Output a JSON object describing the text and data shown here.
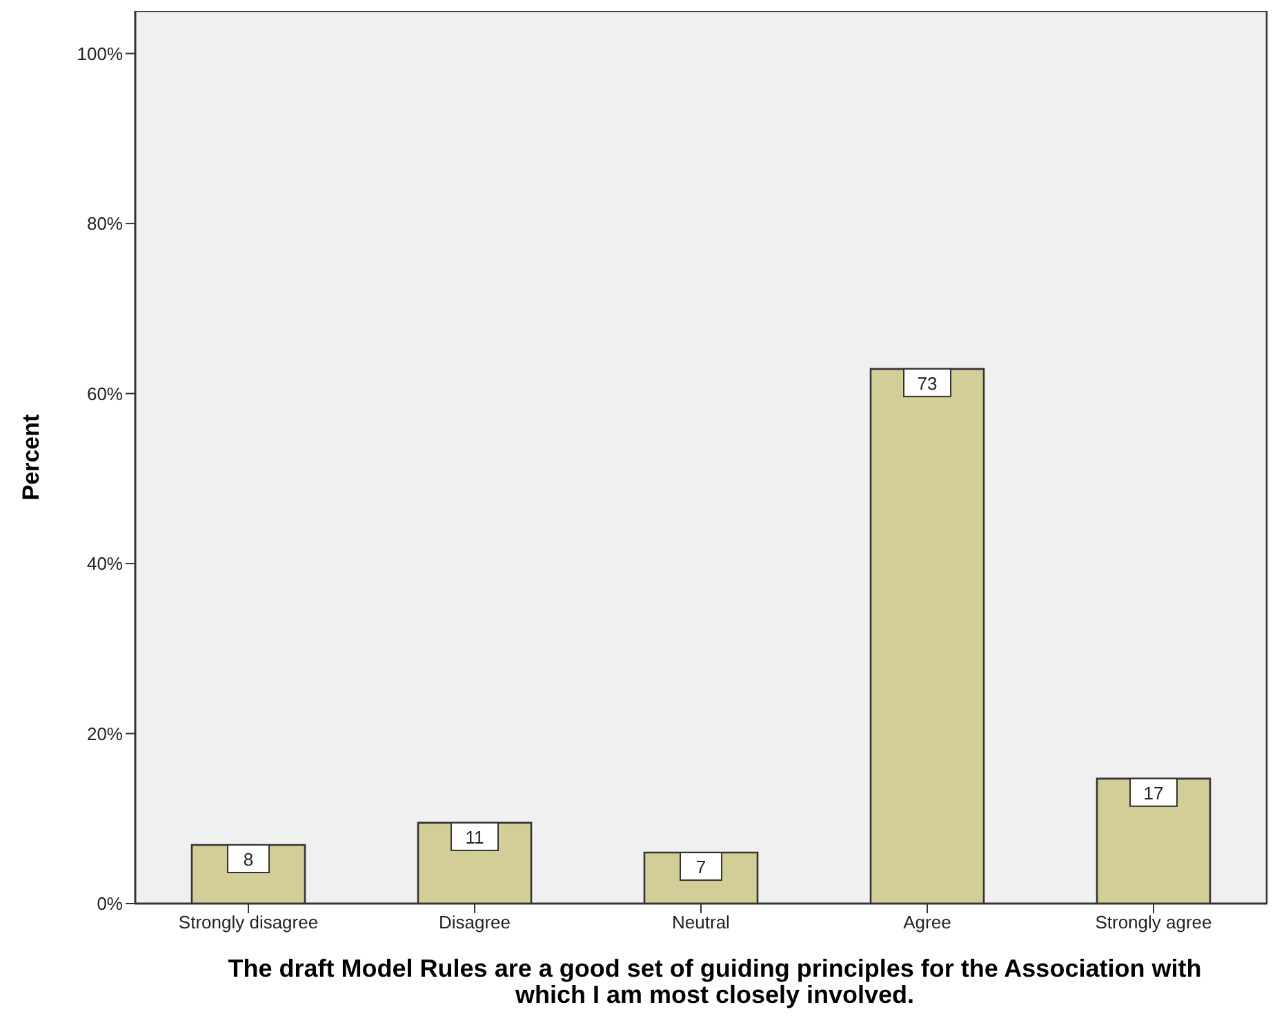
{
  "chart_data": {
    "type": "bar",
    "xlabel": "The draft Model Rules are a good set of guiding principles for the Association with which I am most closely involved.",
    "ylabel": "Percent",
    "categories": [
      "Strongly disagree",
      "Disagree",
      "Neutral",
      "Agree",
      "Strongly agree"
    ],
    "values": [
      6.9,
      9.5,
      6.0,
      62.9,
      14.7
    ],
    "color": "#d3cd98",
    "ylim": [
      0,
      105
    ],
    "yticks": [
      {
        "value": 0,
        "label": "0%"
      },
      {
        "value": 20,
        "label": "20%"
      },
      {
        "value": 40,
        "label": "40%"
      },
      {
        "value": 60,
        "label": "60%"
      },
      {
        "value": 80,
        "label": "80%"
      },
      {
        "value": 100,
        "label": "100%"
      }
    ],
    "annotations": [
      {
        "text": "8",
        "x": "Strongly disagree",
        "y": 6.9
      },
      {
        "text": "11",
        "x": "Disagree",
        "y": 9.5
      },
      {
        "text": "7",
        "x": "Neutral",
        "y": 6.0
      },
      {
        "text": "73",
        "x": "Agree",
        "y": 62.9
      },
      {
        "text": "17",
        "x": "Strongly agree",
        "y": 14.7
      }
    ]
  }
}
